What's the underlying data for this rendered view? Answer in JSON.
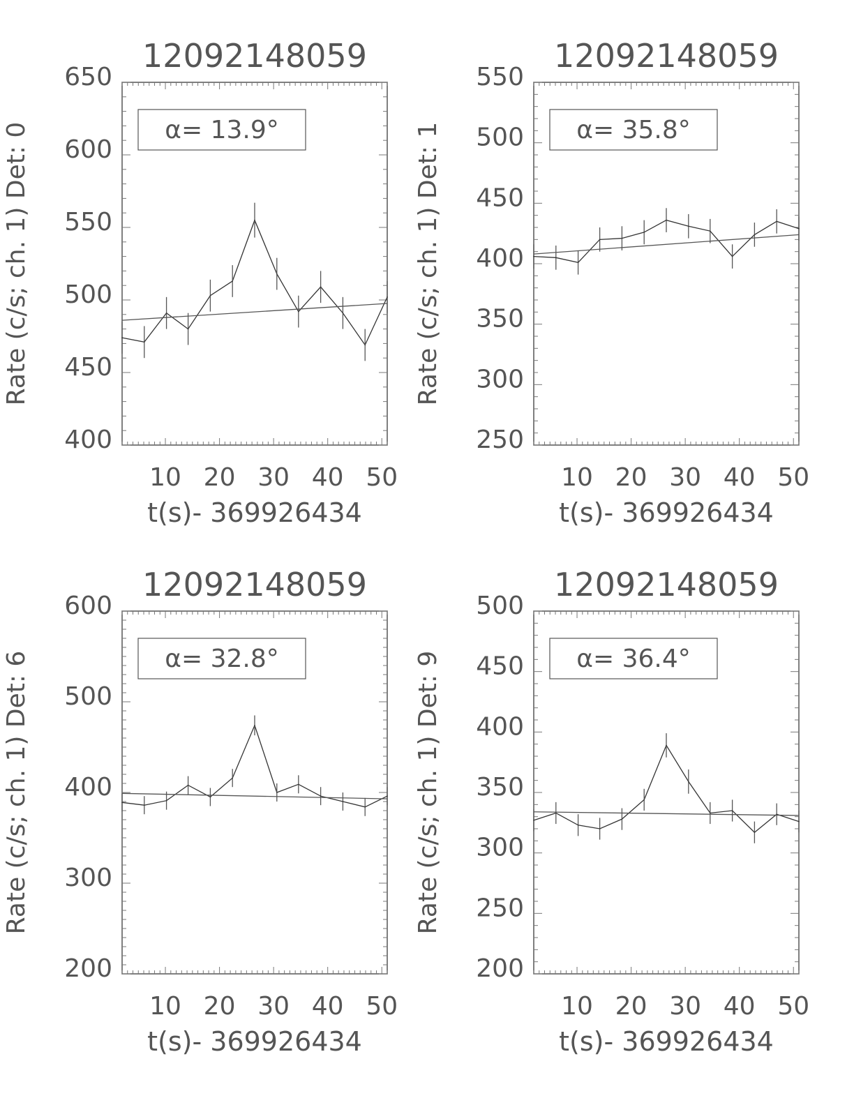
{
  "chart_data": [
    {
      "type": "line",
      "title": "12092148059",
      "xlabel": "t(s)- 369926434",
      "ylabel": "Rate (c/s; ch. 1) Det: 0",
      "annotation": "α= 13.9°",
      "xlim": [
        2,
        51
      ],
      "ylim": [
        400,
        650
      ],
      "xticks": [
        10,
        20,
        30,
        40,
        50
      ],
      "yticks": [
        400,
        450,
        500,
        550,
        600,
        650
      ],
      "x": [
        2.0,
        6.1,
        10.2,
        14.2,
        18.3,
        22.4,
        26.5,
        30.6,
        34.6,
        38.7,
        42.8,
        46.9,
        51.0
      ],
      "series": [
        {
          "values": [
            474,
            471,
            491,
            480,
            503,
            513,
            555,
            518,
            492,
            509,
            491,
            469,
            502
          ],
          "errors": [
            11,
            11,
            11,
            11,
            11,
            11,
            12,
            11,
            11,
            11,
            11,
            11,
            11
          ]
        },
        {
          "values": [
            486,
            497.6
          ],
          "x": [
            2,
            51
          ],
          "style": "fit"
        }
      ],
      "grid": false
    },
    {
      "type": "line",
      "title": "12092148059",
      "xlabel": "t(s)- 369926434",
      "ylabel": "Rate (c/s; ch. 1) Det: 1",
      "annotation": "α= 35.8°",
      "xlim": [
        2,
        51
      ],
      "ylim": [
        250,
        550
      ],
      "xticks": [
        10,
        20,
        30,
        40,
        50
      ],
      "yticks": [
        250,
        300,
        350,
        400,
        450,
        500,
        550
      ],
      "x": [
        2.0,
        6.1,
        10.2,
        14.2,
        18.3,
        22.4,
        26.5,
        30.6,
        34.6,
        38.7,
        42.8,
        46.9,
        51.0
      ],
      "series": [
        {
          "values": [
            406,
            405,
            401,
            420,
            421,
            426,
            436,
            431,
            427,
            406,
            424,
            435,
            429
          ],
          "errors": [
            10,
            10,
            10,
            10,
            10,
            10,
            10,
            10,
            10,
            10,
            10,
            10,
            10
          ]
        },
        {
          "values": [
            408,
            424
          ],
          "x": [
            2,
            51
          ],
          "style": "fit"
        }
      ],
      "grid": false
    },
    {
      "type": "line",
      "title": "12092148059",
      "xlabel": "t(s)- 369926434",
      "ylabel": "Rate (c/s; ch. 1) Det: 6",
      "annotation": "α= 32.8°",
      "xlim": [
        2,
        51
      ],
      "ylim": [
        200,
        600
      ],
      "xticks": [
        10,
        20,
        30,
        40,
        50
      ],
      "yticks": [
        200,
        300,
        400,
        500,
        600
      ],
      "x": [
        2.0,
        6.1,
        10.2,
        14.2,
        18.3,
        22.4,
        26.5,
        30.6,
        34.6,
        38.7,
        42.8,
        46.9,
        51.0
      ],
      "series": [
        {
          "values": [
            389,
            386,
            391,
            408,
            395,
            416,
            474,
            400,
            409,
            396,
            390,
            384,
            396
          ],
          "errors": [
            10,
            10,
            10,
            10,
            10,
            10,
            11,
            10,
            10,
            10,
            10,
            10,
            10
          ]
        },
        {
          "values": [
            399,
            393
          ],
          "x": [
            2,
            51
          ],
          "style": "fit"
        }
      ],
      "grid": false
    },
    {
      "type": "line",
      "title": "12092148059",
      "xlabel": "t(s)- 369926434",
      "ylabel": "Rate (c/s; ch. 1) Det: 9",
      "annotation": "α= 36.4°",
      "xlim": [
        2,
        51
      ],
      "ylim": [
        200,
        500
      ],
      "xticks": [
        10,
        20,
        30,
        40,
        50
      ],
      "yticks": [
        200,
        250,
        300,
        350,
        400,
        450,
        500
      ],
      "x": [
        2.0,
        6.1,
        10.2,
        14.2,
        18.3,
        22.4,
        26.5,
        30.6,
        34.6,
        38.7,
        42.8,
        46.9,
        51.0
      ],
      "series": [
        {
          "values": [
            327,
            333,
            323,
            320,
            328,
            344,
            389,
            359,
            333,
            335,
            317,
            332,
            326
          ],
          "errors": [
            9,
            9,
            9,
            9,
            9,
            9,
            10,
            10,
            9,
            9,
            9,
            9,
            9
          ]
        },
        {
          "values": [
            334,
            331
          ],
          "x": [
            2,
            51
          ],
          "style": "fit"
        }
      ],
      "grid": false
    }
  ]
}
